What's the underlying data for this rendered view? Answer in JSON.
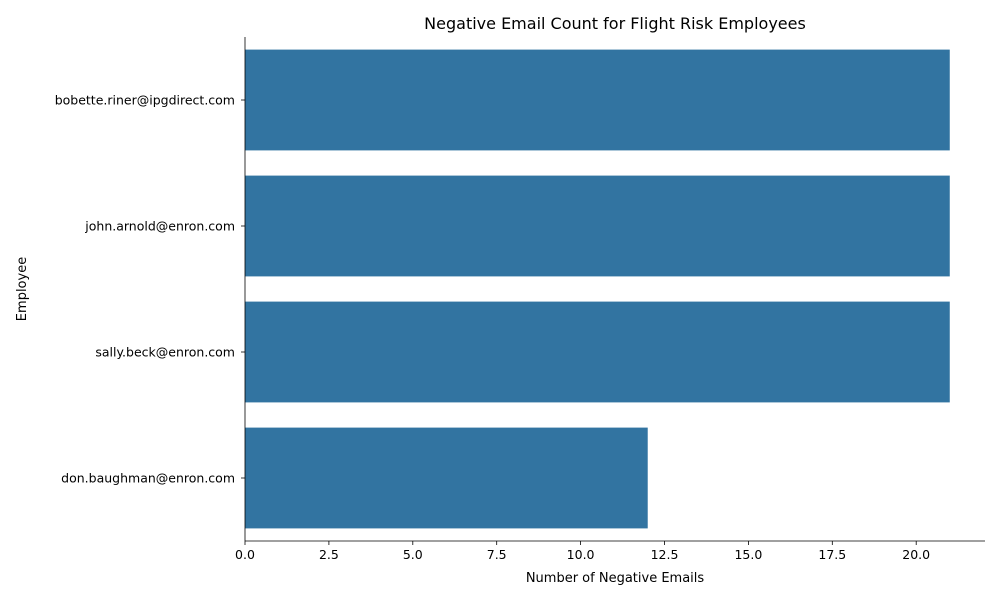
{
  "chart_data": {
    "type": "bar",
    "orientation": "horizontal",
    "title": "Negative Email Count for Flight Risk Employees",
    "xlabel": "Number of Negative Emails",
    "ylabel": "Employee",
    "categories": [
      "bobette.riner@ipgdirect.com",
      "john.arnold@enron.com",
      "sally.beck@enron.com",
      "don.baughman@enron.com"
    ],
    "values": [
      21,
      21,
      21,
      12
    ],
    "xlim": [
      0,
      22.05
    ],
    "x_ticks": [
      "0.0",
      "2.5",
      "5.0",
      "7.5",
      "10.0",
      "12.5",
      "15.0",
      "17.5",
      "20.0"
    ],
    "grid": false,
    "bar_color": "#3274a1"
  }
}
